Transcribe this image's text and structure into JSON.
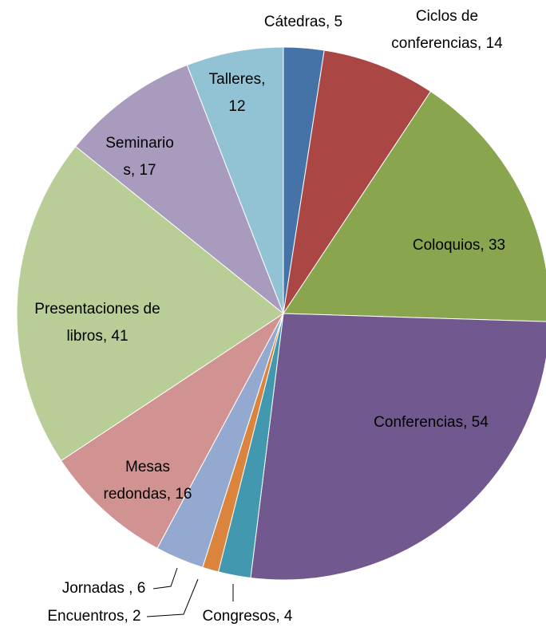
{
  "chart_data": {
    "type": "pie",
    "values": [
      5,
      14,
      33,
      54,
      4,
      2,
      6,
      16,
      41,
      17,
      12
    ],
    "value_labels": [
      [
        "Cátedras, 5"
      ],
      [
        "Ciclos de",
        "conferencias, 14"
      ],
      [
        "Coloquios, 33"
      ],
      [
        "Conferencias, 54"
      ],
      [
        "Congresos, 4"
      ],
      [
        "Encuentros, 2"
      ],
      [
        "Jornadas , 6"
      ],
      [
        "Mesas",
        "redondas, 16"
      ],
      [
        "Presentaciones de",
        "libros, 41"
      ],
      [
        "Seminario",
        "s, 17"
      ],
      [
        "Talleres,",
        "12"
      ]
    ],
    "colors": [
      "#4572A7",
      "#AA4643",
      "#89A54E",
      "#71588F",
      "#4198AF",
      "#DB843D",
      "#93A9CF",
      "#D19392",
      "#B9CD96",
      "#A99BBD",
      "#92C3D4"
    ]
  }
}
